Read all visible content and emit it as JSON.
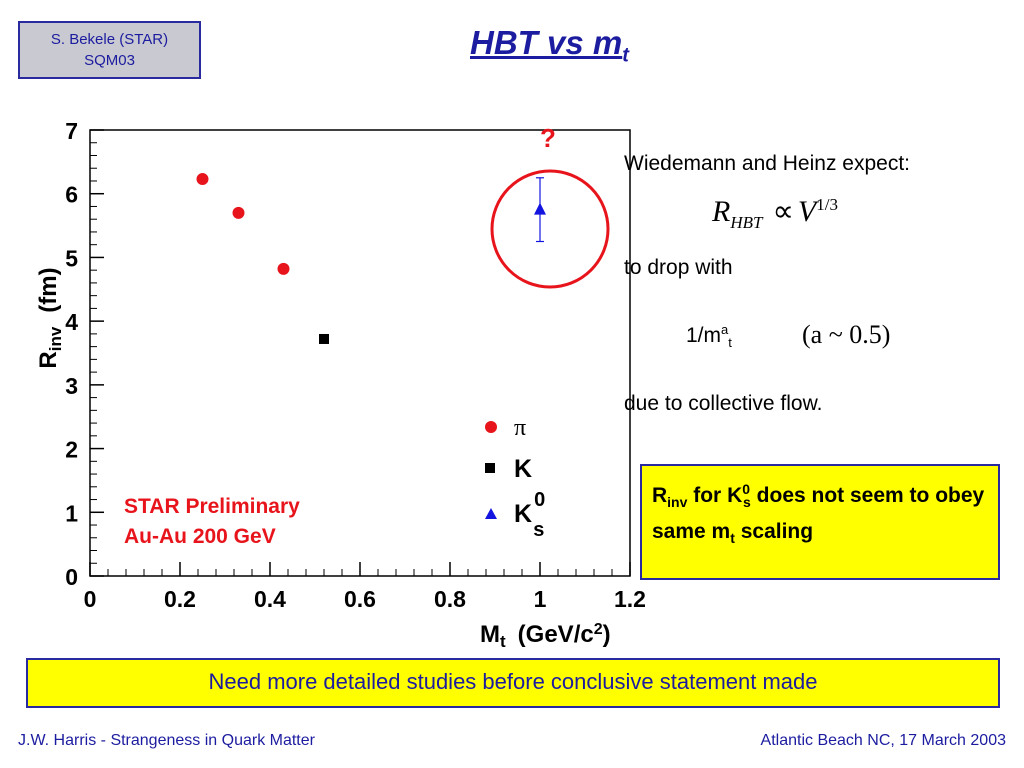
{
  "header": {
    "author_line1": "S. Bekele (STAR)",
    "author_line2": "SQM03",
    "title_main": "HBT vs m",
    "title_sub": "t"
  },
  "chart_data": {
    "type": "scatter",
    "xlabel": "M",
    "xlabel_sub": "t",
    "xlabel_unit": "(GeV/c",
    "xlabel_unit_sup": "2",
    "xlabel_unit_end": ")",
    "ylabel": "R",
    "ylabel_sub": "inv",
    "ylabel_unit": "(fm)",
    "xlim": [
      0,
      1.2
    ],
    "ylim": [
      0,
      7
    ],
    "x_ticks": [
      "0",
      "0.2",
      "0.4",
      "0.6",
      "0.8",
      "1",
      "1.2"
    ],
    "y_ticks": [
      "0",
      "1",
      "2",
      "3",
      "4",
      "5",
      "6",
      "7"
    ],
    "series": [
      {
        "name": "π",
        "marker": "circle",
        "color": "#e8141c",
        "points": [
          {
            "x": 0.25,
            "y": 6.23
          },
          {
            "x": 0.33,
            "y": 5.7
          },
          {
            "x": 0.43,
            "y": 4.82
          }
        ]
      },
      {
        "name": "K",
        "marker": "square",
        "color": "#000000",
        "points": [
          {
            "x": 0.52,
            "y": 3.72
          }
        ]
      },
      {
        "name": "K",
        "name_sup": "0",
        "name_sub": "s",
        "marker": "triangle",
        "color": "#1414e0",
        "points": [
          {
            "x": 1.0,
            "y": 5.75,
            "err_low": 0.5,
            "err_high": 0.5
          }
        ]
      }
    ],
    "annotation_line1": "STAR  Preliminary",
    "annotation_line2": "Au-Au  200  GeV",
    "question_mark": "?"
  },
  "text": {
    "line1": "Wiedemann and Heinz expect:",
    "formula_r": "R",
    "formula_sub": "HBT",
    "formula_prop": "∝",
    "formula_v": "V",
    "formula_exp": "1/3",
    "line2": "to drop with",
    "scaling_base": "1/m",
    "scaling_sup": "a",
    "scaling_sub": "t",
    "scaling_paren": "(a ~ 0.5)",
    "line3": "due to collective flow."
  },
  "callout": {
    "r": "R",
    "r_sub": "inv",
    "for_text": " for  K",
    "k_sup": "0",
    "k_sub": "s",
    "rest": "  does not seem to  obey same m",
    "m_sub": "t",
    "end": " scaling"
  },
  "bottom_note": "Need more detailed studies before conclusive statement made",
  "footer": {
    "left": "J.W. Harris - Strangeness in Quark Matter",
    "right": "Atlantic Beach NC, 17 March 2003"
  }
}
